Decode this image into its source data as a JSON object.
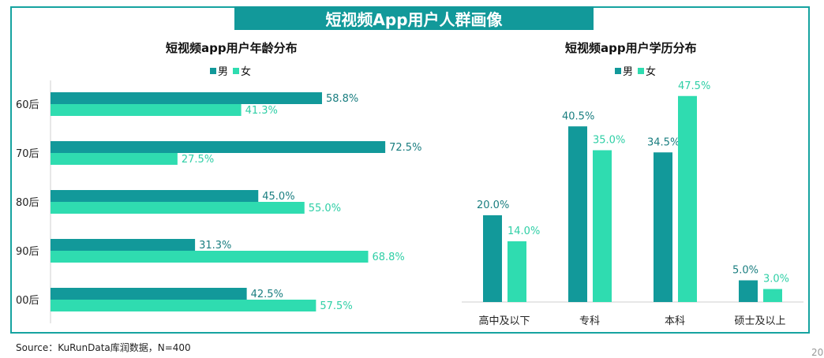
{
  "banner_title": "短视频App用户人群画像",
  "source": "Source：KuRunData库润数据，N=400",
  "page_number": "20",
  "colors": {
    "male": "#12999a",
    "female": "#2fdcb0",
    "frame": "#16a3a0"
  },
  "chart_data": [
    {
      "type": "bar",
      "orientation": "horizontal",
      "title": "短视频app用户年龄分布",
      "categories": [
        "60后",
        "70后",
        "80后",
        "90后",
        "00后"
      ],
      "series": [
        {
          "name": "男",
          "values": [
            58.8,
            72.5,
            45.0,
            31.3,
            42.5
          ],
          "labels": [
            "58.8%",
            "72.5%",
            "45.0%",
            "31.3%",
            "42.5%"
          ]
        },
        {
          "name": "女",
          "values": [
            41.3,
            27.5,
            55.0,
            68.8,
            57.5
          ],
          "labels": [
            "41.3%",
            "27.5%",
            "55.0%",
            "68.8%",
            "57.5%"
          ]
        }
      ],
      "xlim": [
        0,
        100
      ],
      "legend_position": "top"
    },
    {
      "type": "bar",
      "orientation": "vertical",
      "title": "短视频app用户学历分布",
      "categories": [
        "高中及以下",
        "专科",
        "本科",
        "硕士及以上"
      ],
      "series": [
        {
          "name": "男",
          "values": [
            20.0,
            40.5,
            34.5,
            5.0
          ],
          "labels": [
            "20.0%",
            "40.5%",
            "34.5%",
            "5.0%"
          ]
        },
        {
          "name": "女",
          "values": [
            14.0,
            35.0,
            47.5,
            3.0
          ],
          "labels": [
            "14.0%",
            "35.0%",
            "47.5%",
            "3.0%"
          ]
        }
      ],
      "ylim": [
        0,
        50
      ],
      "legend_position": "top"
    }
  ]
}
